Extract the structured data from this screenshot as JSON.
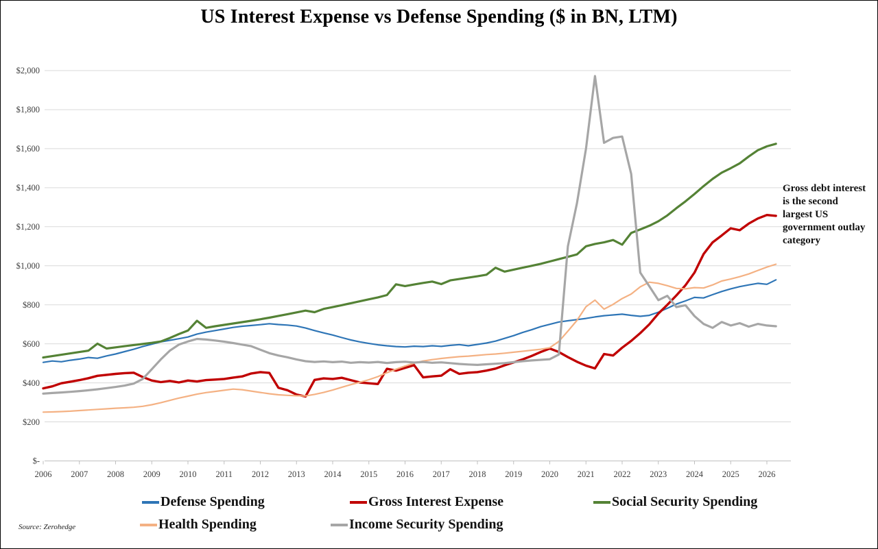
{
  "title": "US Interest Expense vs Defense Spending ($ in BN, LTM)",
  "annotation": "Gross debt interest is the second largest US government outlay category",
  "source": "Source: Zerohedge",
  "legend": {
    "items": [
      {
        "label": "Defense Spending",
        "color": "#2E75B6"
      },
      {
        "label": "Gross Interest Expense",
        "color": "#C00000"
      },
      {
        "label": "Social Security Spending",
        "color": "#548235"
      },
      {
        "label": "Health Spending",
        "color": "#F4B183"
      },
      {
        "label": "Income Security Spending",
        "color": "#A6A6A6"
      }
    ]
  },
  "chart_data": {
    "type": "line",
    "title": "US Interest Expense vs Defense Spending ($ in BN, LTM)",
    "xlabel": "",
    "ylabel": "",
    "grid": true,
    "legend_position": "bottom",
    "x_start": 2006,
    "x_step": 0.25,
    "x_ticks": [
      2006,
      2007,
      2008,
      2009,
      2010,
      2011,
      2012,
      2013,
      2014,
      2015,
      2016,
      2017,
      2018,
      2019,
      2020,
      2021,
      2022,
      2023,
      2024,
      2025,
      2026
    ],
    "ylim": [
      0,
      2000
    ],
    "y_ticks": {
      "values": [
        0,
        200,
        400,
        600,
        800,
        1000,
        1200,
        1400,
        1600,
        1800,
        2000
      ],
      "labels": [
        "$-",
        "$200",
        "$400",
        "$600",
        "$800",
        "$1,000",
        "$1,200",
        "$1,400",
        "$1,600",
        "$1,800",
        "$2,000"
      ]
    },
    "series": [
      {
        "name": "Defense Spending",
        "color": "#2E75B6",
        "width": 2.2,
        "values": [
          505,
          512,
          508,
          516,
          522,
          530,
          526,
          538,
          548,
          560,
          572,
          586,
          598,
          610,
          618,
          626,
          635,
          650,
          660,
          668,
          676,
          684,
          690,
          694,
          698,
          703,
          699,
          696,
          691,
          681,
          668,
          656,
          645,
          632,
          620,
          610,
          602,
          595,
          590,
          586,
          584,
          588,
          586,
          590,
          587,
          592,
          596,
          590,
          597,
          604,
          614,
          628,
          642,
          658,
          672,
          688,
          700,
          712,
          718,
          724,
          730,
          738,
          744,
          748,
          752,
          746,
          741,
          746,
          762,
          782,
          804,
          820,
          838,
          835,
          852,
          868,
          882,
          893,
          902,
          910,
          905,
          928
        ]
      },
      {
        "name": "Gross Interest Expense",
        "color": "#C00000",
        "width": 3.4,
        "values": [
          372,
          382,
          398,
          406,
          414,
          424,
          436,
          441,
          446,
          450,
          452,
          430,
          412,
          404,
          410,
          402,
          412,
          407,
          414,
          417,
          420,
          427,
          433,
          448,
          455,
          451,
          375,
          362,
          340,
          330,
          415,
          423,
          420,
          426,
          414,
          402,
          398,
          394,
          472,
          463,
          477,
          491,
          428,
          433,
          437,
          470,
          446,
          452,
          455,
          463,
          473,
          490,
          505,
          520,
          538,
          558,
          576,
          558,
          532,
          508,
          488,
          474,
          548,
          540,
          580,
          615,
          655,
          700,
          755,
          800,
          848,
          900,
          965,
          1060,
          1120,
          1155,
          1192,
          1182,
          1216,
          1242,
          1260,
          1256
        ]
      },
      {
        "name": "Social Security Spending",
        "color": "#548235",
        "width": 3.2,
        "values": [
          530,
          537,
          544,
          551,
          558,
          565,
          601,
          576,
          582,
          588,
          594,
          599,
          605,
          612,
          630,
          650,
          668,
          718,
          682,
          690,
          697,
          704,
          711,
          718,
          726,
          734,
          743,
          752,
          761,
          770,
          762,
          779,
          788,
          798,
          808,
          818,
          828,
          838,
          850,
          905,
          896,
          904,
          912,
          919,
          906,
          925,
          932,
          939,
          946,
          954,
          990,
          970,
          980,
          990,
          1000,
          1010,
          1022,
          1034,
          1046,
          1058,
          1100,
          1112,
          1120,
          1132,
          1108,
          1168,
          1186,
          1205,
          1228,
          1258,
          1295,
          1330,
          1368,
          1408,
          1445,
          1477,
          1500,
          1525,
          1560,
          1592,
          1612,
          1625
        ]
      },
      {
        "name": "Health Spending",
        "color": "#F4B183",
        "width": 2.2,
        "values": [
          250,
          251,
          253,
          255,
          258,
          261,
          264,
          267,
          270,
          272,
          275,
          280,
          288,
          298,
          310,
          322,
          332,
          342,
          350,
          356,
          362,
          368,
          365,
          358,
          351,
          344,
          339,
          336,
          334,
          333,
          341,
          351,
          363,
          377,
          391,
          403,
          416,
          432,
          452,
          470,
          486,
          501,
          512,
          519,
          525,
          530,
          534,
          537,
          541,
          545,
          548,
          552,
          557,
          562,
          567,
          572,
          580,
          612,
          665,
          720,
          790,
          824,
          778,
          802,
          832,
          855,
          892,
          916,
          910,
          898,
          884,
          882,
          888,
          886,
          902,
          922,
          932,
          944,
          958,
          976,
          993,
          1008
        ]
      },
      {
        "name": "Income Security Spending",
        "color": "#A6A6A6",
        "width": 3.2,
        "values": [
          345,
          348,
          351,
          354,
          358,
          362,
          367,
          373,
          379,
          386,
          396,
          420,
          470,
          520,
          565,
          596,
          612,
          625,
          622,
          617,
          611,
          604,
          596,
          588,
          570,
          552,
          540,
          531,
          520,
          511,
          507,
          510,
          506,
          509,
          503,
          506,
          504,
          507,
          502,
          506,
          508,
          504,
          507,
          503,
          505,
          501,
          497,
          494,
          492,
          495,
          498,
          501,
          506,
          511,
          515,
          518,
          521,
          545,
          1100,
          1320,
          1600,
          1972,
          1630,
          1655,
          1662,
          1470,
          965,
          895,
          824,
          846,
          788,
          798,
          742,
          702,
          682,
          712,
          694,
          706,
          688,
          702,
          694,
          690
        ]
      }
    ]
  }
}
